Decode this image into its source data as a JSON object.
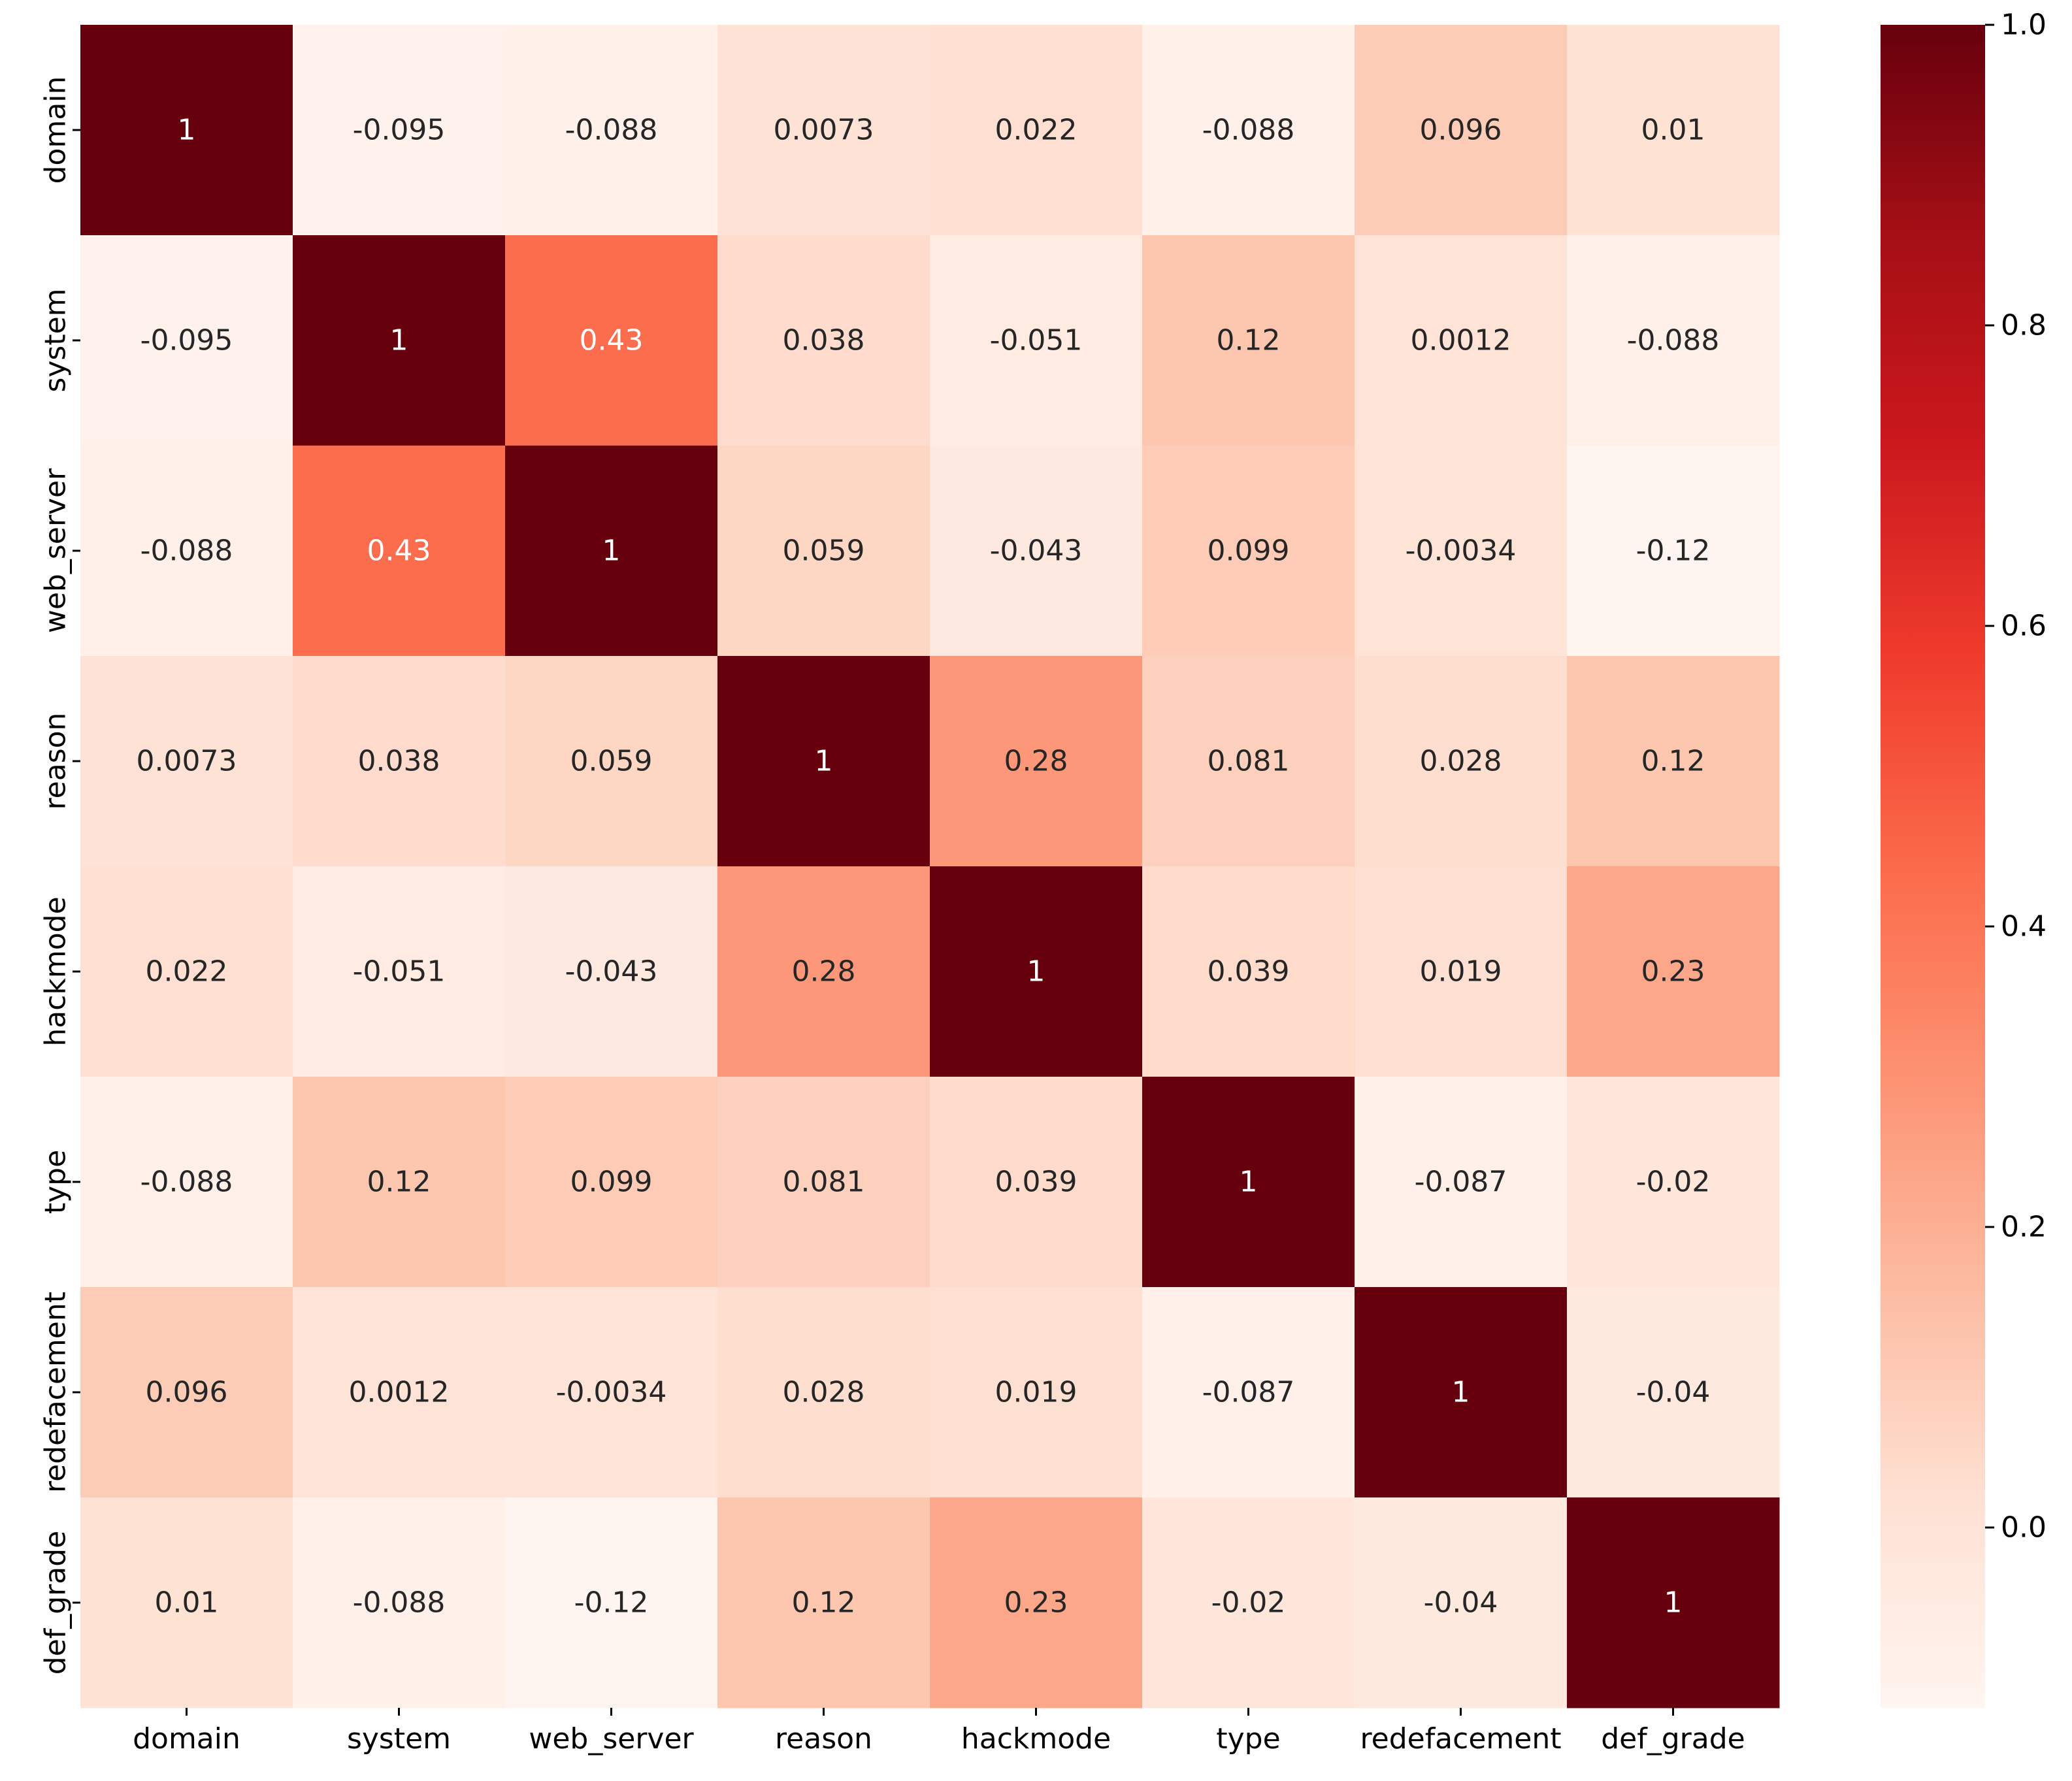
{
  "chart_data": {
    "type": "heatmap",
    "title": "",
    "xlabel": "",
    "ylabel": "",
    "row_labels": [
      "domain",
      "system",
      "web_server",
      "reason",
      "hackmode",
      "type",
      "redefacement",
      "def_grade"
    ],
    "col_labels": [
      "domain",
      "system",
      "web_server",
      "reason",
      "hackmode",
      "type",
      "redefacement",
      "def_grade"
    ],
    "values": [
      [
        1,
        -0.095,
        -0.088,
        0.0073,
        0.022,
        -0.088,
        0.096,
        0.01
      ],
      [
        -0.095,
        1,
        0.43,
        0.038,
        -0.051,
        0.12,
        0.0012,
        -0.088
      ],
      [
        -0.088,
        0.43,
        1,
        0.059,
        -0.043,
        0.099,
        -0.0034,
        -0.12
      ],
      [
        0.0073,
        0.038,
        0.059,
        1,
        0.28,
        0.081,
        0.028,
        0.12
      ],
      [
        0.022,
        -0.051,
        -0.043,
        0.28,
        1,
        0.039,
        0.019,
        0.23
      ],
      [
        -0.088,
        0.12,
        0.099,
        0.081,
        0.039,
        1,
        -0.087,
        -0.02
      ],
      [
        0.096,
        0.0012,
        -0.0034,
        0.028,
        0.019,
        -0.087,
        1,
        -0.04
      ],
      [
        0.01,
        -0.088,
        -0.12,
        0.12,
        0.23,
        -0.02,
        -0.04,
        1
      ]
    ],
    "annotations": [
      [
        "1",
        "-0.095",
        "-0.088",
        "0.0073",
        "0.022",
        "-0.088",
        "0.096",
        "0.01"
      ],
      [
        "-0.095",
        "1",
        "0.43",
        "0.038",
        "-0.051",
        "0.12",
        "0.0012",
        "-0.088"
      ],
      [
        "-0.088",
        "0.43",
        "1",
        "0.059",
        "-0.043",
        "0.099",
        "-0.0034",
        "-0.12"
      ],
      [
        "0.0073",
        "0.038",
        "0.059",
        "1",
        "0.28",
        "0.081",
        "0.028",
        "0.12"
      ],
      [
        "0.022",
        "-0.051",
        "-0.043",
        "0.28",
        "1",
        "0.039",
        "0.019",
        "0.23"
      ],
      [
        "-0.088",
        "0.12",
        "0.099",
        "0.081",
        "0.039",
        "1",
        "-0.087",
        "-0.02"
      ],
      [
        "0.096",
        "0.0012",
        "-0.0034",
        "0.028",
        "0.019",
        "-0.087",
        "1",
        "-0.04"
      ],
      [
        "0.01",
        "-0.088",
        "-0.12",
        "0.12",
        "0.23",
        "-0.02",
        "-0.04",
        "1"
      ]
    ],
    "colormap": "Reds",
    "colormap_stops": [
      "#fff5f0",
      "#fee0d2",
      "#fcbba1",
      "#fc9272",
      "#fb6a4a",
      "#ef3b2c",
      "#cb181d",
      "#a50f15",
      "#67000d"
    ],
    "vmin": -0.12,
    "vmax": 1.0,
    "colorbar": {
      "ticks": [
        0.0,
        0.2,
        0.4,
        0.6,
        0.8,
        1.0
      ],
      "tick_labels": [
        "0.0",
        "0.2",
        "0.4",
        "0.6",
        "0.8",
        "1.0"
      ],
      "placement": "right"
    },
    "grid": false
  }
}
